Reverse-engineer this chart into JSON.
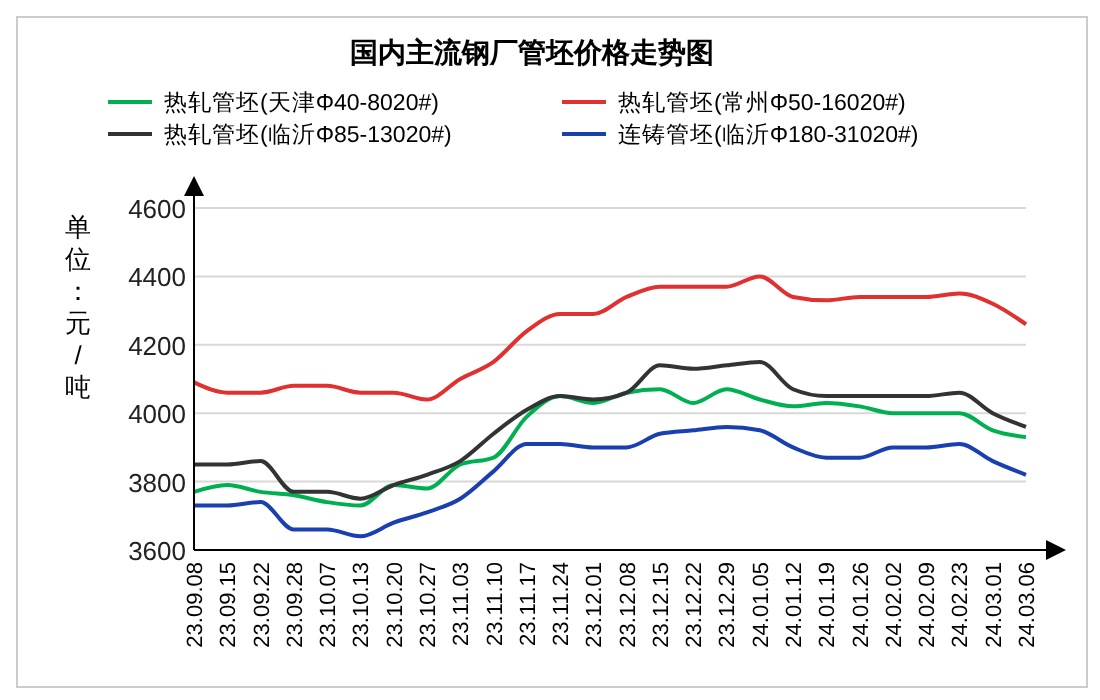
{
  "chart_data": {
    "type": "line",
    "title": "国内主流钢厂管坯价格走势图",
    "ylabel": "单位：元/吨",
    "categories": [
      "23.09.08",
      "23.09.15",
      "23.09.22",
      "23.09.28",
      "23.10.07",
      "23.10.13",
      "23.10.20",
      "23.10.27",
      "23.11.03",
      "23.11.10",
      "23.11.17",
      "23.11.24",
      "23.12.01",
      "23.12.08",
      "23.12.15",
      "23.12.22",
      "23.12.29",
      "24.01.05",
      "24.01.12",
      "24.01.19",
      "24.01.26",
      "24.02.02",
      "24.02.09",
      "24.02.23",
      "24.03.01",
      "24.03.06"
    ],
    "ylim": [
      3600,
      4600
    ],
    "yticks": [
      3600,
      3800,
      4000,
      4200,
      4400,
      4600
    ],
    "grid": "y",
    "legend": "top",
    "marker": "none",
    "line_style": "solid",
    "series": [
      {
        "name": "热轧管坯(天津Φ40-8020#)",
        "color": "#00b050",
        "values": [
          3770,
          3790,
          3770,
          3760,
          3740,
          3730,
          3790,
          3780,
          3850,
          3870,
          3990,
          4050,
          4030,
          4060,
          4070,
          4030,
          4070,
          4040,
          4020,
          4030,
          4020,
          4000,
          4000,
          4000,
          3950,
          3930
        ]
      },
      {
        "name": "热轧管坯(常州Φ50-16020#)",
        "color": "#e03030",
        "values": [
          4090,
          4060,
          4060,
          4080,
          4080,
          4060,
          4060,
          4040,
          4100,
          4150,
          4240,
          4290,
          4290,
          4340,
          4370,
          4370,
          4370,
          4400,
          4340,
          4330,
          4340,
          4340,
          4340,
          4350,
          4320,
          4260
        ]
      },
      {
        "name": "热轧管坯(临沂Φ85-13020#)",
        "color": "#333333",
        "values": [
          3850,
          3850,
          3860,
          3770,
          3770,
          3750,
          3790,
          3820,
          3860,
          3940,
          4010,
          4050,
          4040,
          4060,
          4140,
          4130,
          4140,
          4150,
          4070,
          4050,
          4050,
          4050,
          4050,
          4060,
          4000,
          3960
        ]
      },
      {
        "name": "连铸管坯(临沂Φ180-31020#)",
        "color": "#1a3fb0",
        "values": [
          3730,
          3730,
          3740,
          3660,
          3660,
          3640,
          3680,
          3710,
          3750,
          3830,
          3910,
          3910,
          3900,
          3900,
          3940,
          3950,
          3960,
          3950,
          3900,
          3870,
          3870,
          3900,
          3900,
          3910,
          3860,
          3820
        ]
      }
    ]
  }
}
